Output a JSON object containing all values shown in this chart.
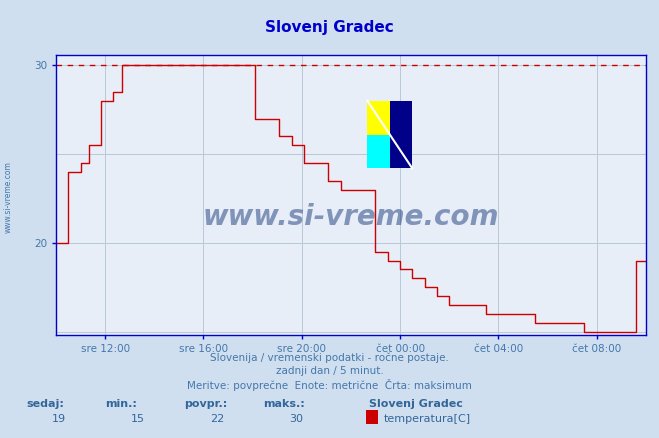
{
  "title": "Slovenj Gradec",
  "title_color": "#0000cc",
  "bg_color": "#d0dff0",
  "plot_bg_color": "#e8eef8",
  "grid_color": "#b8c8d8",
  "line_color": "#cc0000",
  "dashed_line_color": "#cc0000",
  "axis_color": "#0000cc",
  "tick_label_color": "#4477aa",
  "xlim": [
    0,
    288
  ],
  "ylim": [
    15,
    30
  ],
  "ytick_positions": [
    20,
    30
  ],
  "ytick_labels": [
    "20",
    "30"
  ],
  "xtick_positions": [
    24,
    72,
    120,
    168,
    216,
    264
  ],
  "xtick_labels": [
    "sre 12:00",
    "sre 16:00",
    "sre 20:00",
    "čet 00:00",
    "čet 04:00",
    "čet 08:00"
  ],
  "max_line_y": 30,
  "watermark": "www.si-vreme.com",
  "subtitle1": "Slovenija / vremenski podatki - ročne postaje.",
  "subtitle2": "zadnji dan / 5 minut.",
  "subtitle3": "Meritve: povprečne  Enote: metrične  Črta: maksimum",
  "footer_labels": [
    "sedaj:",
    "min.:",
    "povpr.:",
    "maks.:"
  ],
  "footer_values": [
    "19",
    "15",
    "22",
    "30"
  ],
  "footer_station": "Slovenj Gradec",
  "footer_series": "temperatura[C]",
  "series_color": "#cc0000",
  "temperature_data": [
    [
      0,
      20.0
    ],
    [
      6,
      24.0
    ],
    [
      12,
      24.5
    ],
    [
      16,
      25.5
    ],
    [
      22,
      28.0
    ],
    [
      28,
      28.5
    ],
    [
      32,
      30.0
    ],
    [
      96,
      30.0
    ],
    [
      97,
      27.0
    ],
    [
      109,
      26.0
    ],
    [
      115,
      25.5
    ],
    [
      121,
      24.5
    ],
    [
      133,
      23.5
    ],
    [
      139,
      23.0
    ],
    [
      155,
      23.0
    ],
    [
      156,
      19.5
    ],
    [
      162,
      19.0
    ],
    [
      168,
      18.5
    ],
    [
      174,
      18.0
    ],
    [
      180,
      17.5
    ],
    [
      186,
      17.0
    ],
    [
      192,
      16.5
    ],
    [
      210,
      16.0
    ],
    [
      234,
      15.5
    ],
    [
      258,
      15.0
    ],
    [
      282,
      15.0
    ],
    [
      283,
      19.0
    ],
    [
      288,
      19.0
    ]
  ]
}
